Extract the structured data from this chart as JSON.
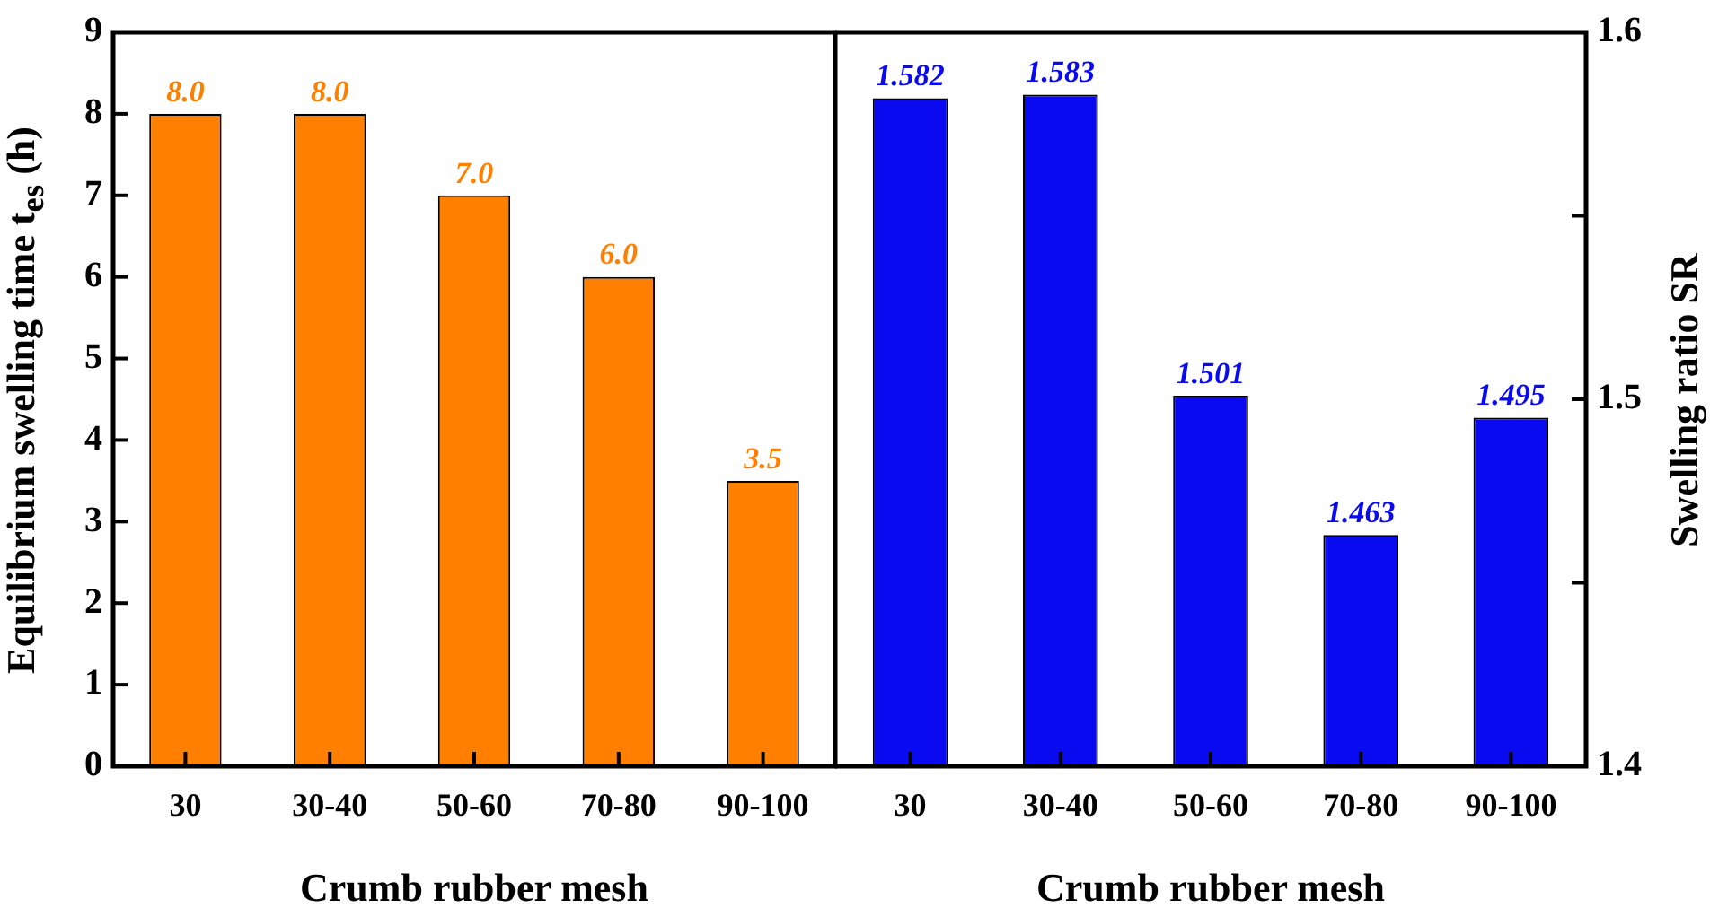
{
  "chart_data": [
    {
      "type": "bar",
      "xlabel": "Crumb rubber mesh",
      "ylabel": "Equilibrium swelling time t$_{es}$ (h)",
      "categories": [
        "30",
        "30-40",
        "50-60",
        "70-80",
        "90-100"
      ],
      "series": [
        {
          "color": "#ff8000",
          "values": [
            8.0,
            8.0,
            7.0,
            6.0,
            3.5
          ],
          "value_labels": [
            "8.0",
            "8.0",
            "7.0",
            "6.0",
            "3.5"
          ]
        }
      ],
      "ylim": [
        0,
        9
      ],
      "yticks": [
        0,
        1,
        2,
        3,
        4,
        5,
        6,
        7,
        8,
        9
      ]
    },
    {
      "type": "bar",
      "xlabel": "Crumb rubber mesh",
      "y2label": "Swelling ratio SR",
      "categories": [
        "30",
        "30-40",
        "50-60",
        "70-80",
        "90-100"
      ],
      "series": [
        {
          "color": "#0a0af0",
          "axis": "y2",
          "values": [
            1.582,
            1.583,
            1.501,
            1.463,
            1.495
          ]
        }
      ],
      "y2lim": [
        1.4,
        1.6
      ],
      "y2ticks": [
        1.4,
        {
          "value": 1.45,
          "label": null
        },
        1.5,
        {
          "value": 1.55,
          "label": null
        },
        1.6
      ],
      "data_labels": true
    }
  ]
}
